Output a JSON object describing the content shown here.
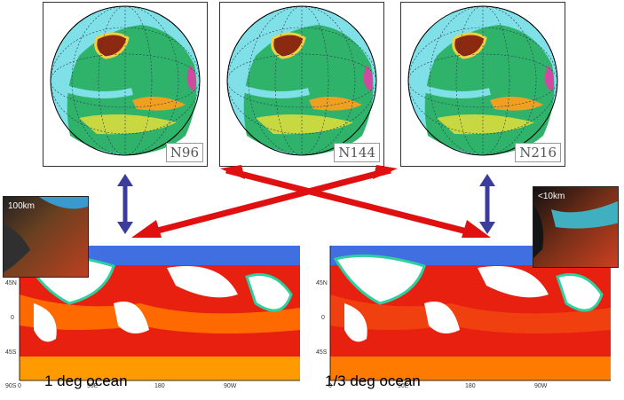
{
  "globes": [
    {
      "label": "N96"
    },
    {
      "label": "N144"
    },
    {
      "label": "N216"
    }
  ],
  "oceans": [
    {
      "title": "1 deg ocean",
      "inset_label": "100km",
      "lat_ticks": [
        "45N",
        "0",
        "45S",
        "90S"
      ],
      "lon_ticks": [
        "0",
        "90E",
        "180",
        "90W"
      ]
    },
    {
      "title": "1/3 deg ocean",
      "inset_label": "<10km",
      "lat_ticks": [
        "45N",
        "0",
        "45S"
      ],
      "lon_ticks": [
        "0",
        "90E",
        "180",
        "90W"
      ]
    }
  ],
  "colors": {
    "coupling_arrow": "#3a3d9c",
    "cross_arrow": "#e01010",
    "sea": "#7fe0e8",
    "land_green": "#2fb36a",
    "ocean_hot": "#e82010",
    "ocean_warm": "#ff9a00"
  }
}
